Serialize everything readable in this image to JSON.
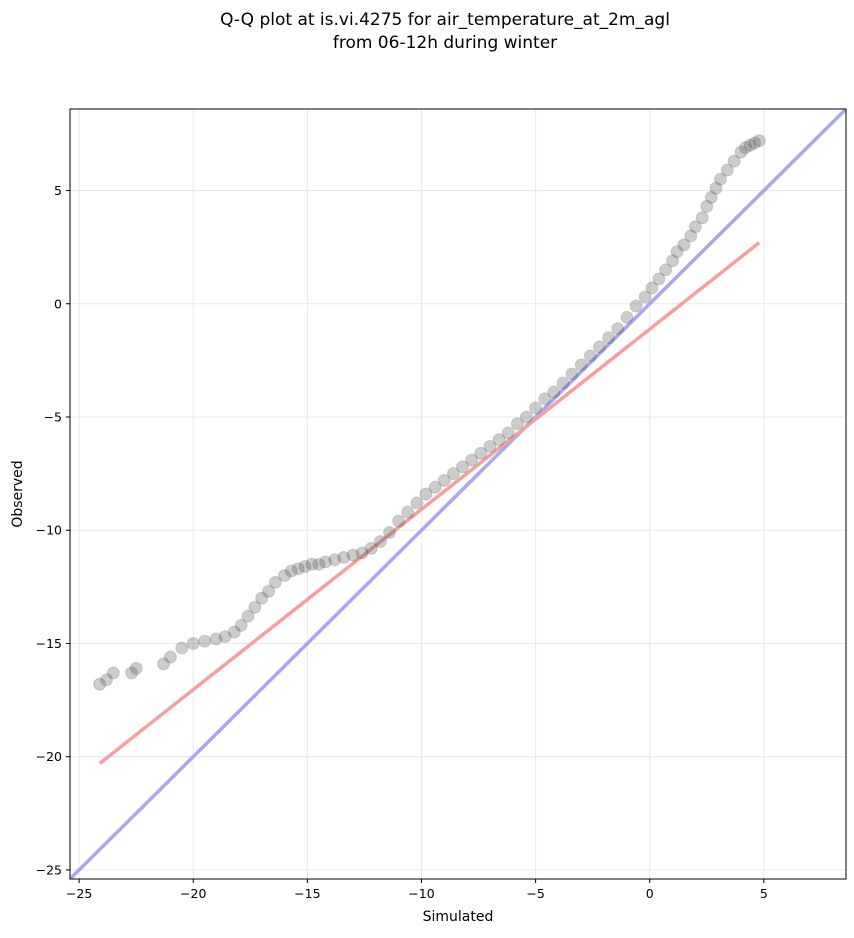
{
  "chart_data": {
    "type": "scatter",
    "title_line1": "Q-Q plot at is.vi.4275 for air_temperature_at_2m_agl",
    "title_line2": "from 06-12h during winter",
    "xlabel": "Simulated",
    "ylabel": "Observed",
    "xlim": [
      -25.4,
      8.6
    ],
    "ylim": [
      -25.4,
      8.6
    ],
    "x_ticks": [
      -25,
      -20,
      -15,
      -10,
      -5,
      0,
      5
    ],
    "y_ticks": [
      -25,
      -20,
      -15,
      -10,
      -5,
      0,
      5
    ],
    "x_tick_labels": [
      "−25",
      "−20",
      "−15",
      "−10",
      "−5",
      "0",
      "5"
    ],
    "y_tick_labels": [
      "−25",
      "−20",
      "−15",
      "−10",
      "−5",
      "0",
      "5"
    ],
    "grid": true,
    "quantile_points": {
      "x": [
        -24.1,
        -23.8,
        -23.5,
        -22.7,
        -22.5,
        -21.3,
        -21.0,
        -20.5,
        -20.0,
        -19.5,
        -19.0,
        -18.6,
        -18.2,
        -17.9,
        -17.6,
        -17.3,
        -17.0,
        -16.7,
        -16.4,
        -16.0,
        -15.7,
        -15.4,
        -15.1,
        -14.8,
        -14.5,
        -14.2,
        -13.8,
        -13.4,
        -13.0,
        -12.6,
        -12.2,
        -11.8,
        -11.4,
        -11.0,
        -10.6,
        -10.2,
        -9.8,
        -9.4,
        -9.0,
        -8.6,
        -8.2,
        -7.8,
        -7.4,
        -7.0,
        -6.6,
        -6.2,
        -5.8,
        -5.4,
        -5.0,
        -4.6,
        -4.2,
        -3.8,
        -3.4,
        -3.0,
        -2.6,
        -2.2,
        -1.8,
        -1.4,
        -1.0,
        -0.6,
        -0.2,
        0.1,
        0.4,
        0.7,
        1.0,
        1.2,
        1.5,
        1.8,
        2.0,
        2.3,
        2.5,
        2.7,
        2.9,
        3.1,
        3.4,
        3.7,
        4.0,
        4.2,
        4.4,
        4.6,
        4.8
      ],
      "y": [
        -16.8,
        -16.6,
        -16.3,
        -16.3,
        -16.1,
        -15.9,
        -15.6,
        -15.2,
        -15.0,
        -14.9,
        -14.8,
        -14.7,
        -14.5,
        -14.2,
        -13.8,
        -13.4,
        -13.0,
        -12.7,
        -12.3,
        -12.0,
        -11.8,
        -11.7,
        -11.6,
        -11.5,
        -11.5,
        -11.4,
        -11.3,
        -11.2,
        -11.1,
        -11.0,
        -10.8,
        -10.5,
        -10.1,
        -9.6,
        -9.2,
        -8.8,
        -8.4,
        -8.1,
        -7.8,
        -7.5,
        -7.2,
        -6.9,
        -6.6,
        -6.3,
        -6.0,
        -5.7,
        -5.3,
        -5.0,
        -4.6,
        -4.2,
        -3.9,
        -3.5,
        -3.1,
        -2.7,
        -2.3,
        -1.9,
        -1.5,
        -1.1,
        -0.6,
        -0.1,
        0.3,
        0.7,
        1.1,
        1.5,
        1.9,
        2.3,
        2.6,
        3.0,
        3.4,
        3.8,
        4.3,
        4.7,
        5.1,
        5.5,
        5.9,
        6.3,
        6.7,
        6.9,
        7.0,
        7.1,
        7.2
      ]
    },
    "fit_line": {
      "color": "#f4a0a0",
      "x": [
        -24.1,
        4.8
      ],
      "y": [
        -20.3,
        2.7
      ]
    },
    "identity_line": {
      "color": "#a8a8f0",
      "x": [
        -25.4,
        8.6
      ],
      "y": [
        -25.4,
        8.6
      ]
    },
    "colors": {
      "point": "#555555",
      "axis": "#000000",
      "grid": "#e8e8e8"
    }
  }
}
